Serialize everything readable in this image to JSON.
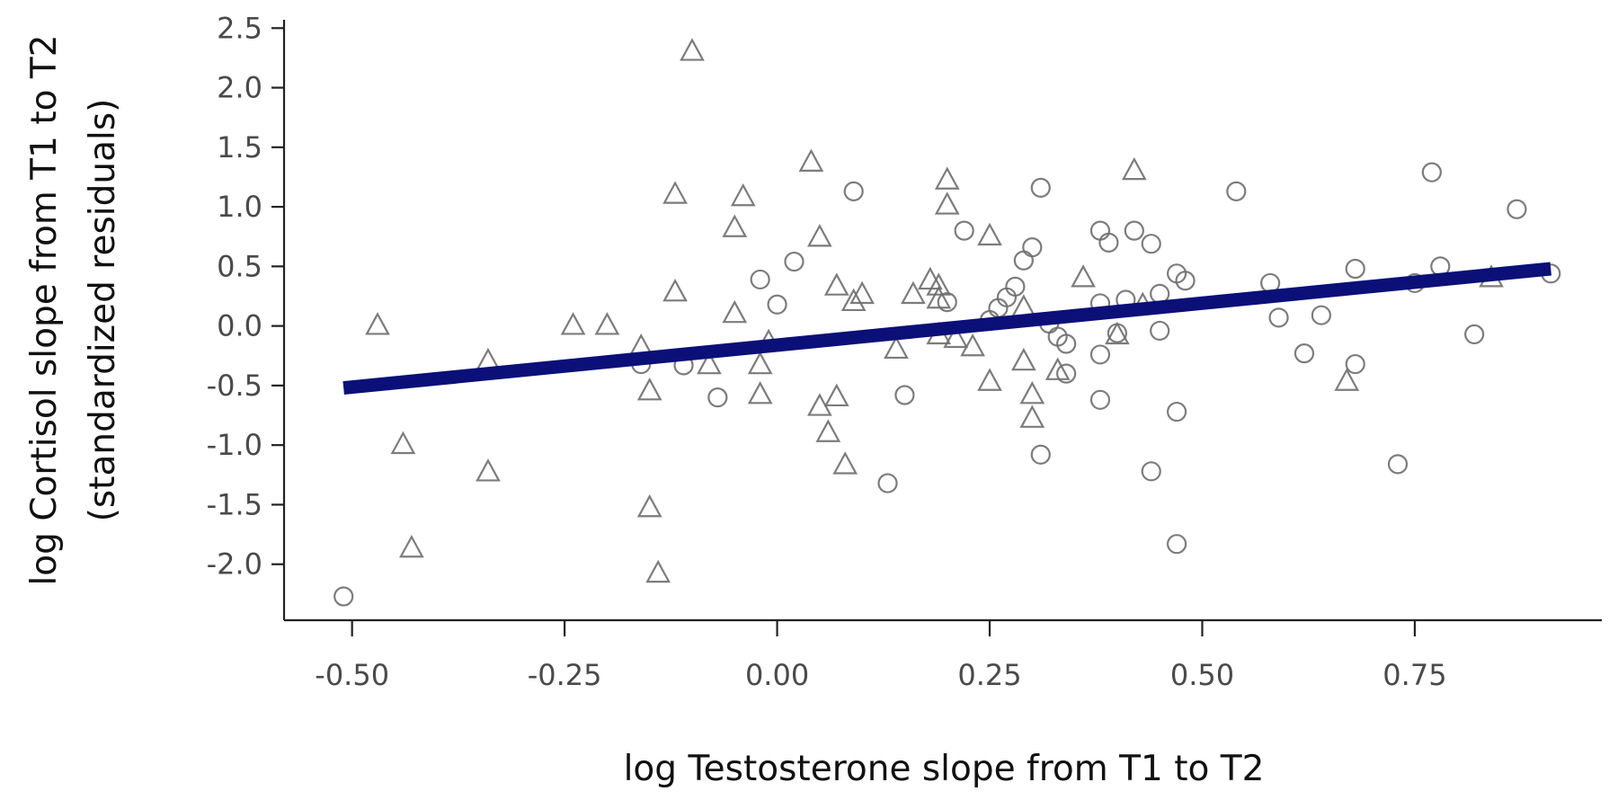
{
  "chart_data": {
    "type": "scatter",
    "xlabel": "log Testosterone slope from T1 to T2",
    "ylabel_lines": [
      "log Cortisol slope from T1 to T2",
      "(standardized residuals)"
    ],
    "xlim": [
      -0.58,
      0.97
    ],
    "ylim": [
      -2.47,
      2.57
    ],
    "x_ticks": [
      -0.5,
      -0.25,
      0.0,
      0.25,
      0.5,
      0.75
    ],
    "x_tick_labels": [
      "-0.50",
      "-0.25",
      "0.00",
      "0.25",
      "0.50",
      "0.75"
    ],
    "y_ticks": [
      2.5,
      2.0,
      1.5,
      1.0,
      0.5,
      0.0,
      -0.5,
      -1.0,
      -1.5,
      -2.0
    ],
    "y_tick_labels": [
      "2.5",
      "2.0",
      "1.5",
      "1.0",
      "0.5",
      "0.0",
      "-0.5",
      "-1.0",
      "-1.5",
      "-2.0"
    ],
    "grid": false,
    "series": [
      {
        "marker": "triangle",
        "points": [
          [
            -0.47,
            0.0
          ],
          [
            -0.34,
            -0.3
          ],
          [
            -0.44,
            -1.0
          ],
          [
            -0.34,
            -1.23
          ],
          [
            -0.43,
            -1.87
          ],
          [
            -0.24,
            0.0
          ],
          [
            -0.2,
            0.0
          ],
          [
            -0.16,
            -0.18
          ],
          [
            -0.15,
            -0.55
          ],
          [
            -0.15,
            -1.53
          ],
          [
            -0.14,
            -2.08
          ],
          [
            -0.12,
            0.28
          ],
          [
            -0.12,
            1.1
          ],
          [
            -0.1,
            2.3
          ],
          [
            -0.08,
            -0.33
          ],
          [
            -0.05,
            0.82
          ],
          [
            -0.05,
            0.1
          ],
          [
            -0.04,
            1.08
          ],
          [
            -0.02,
            -0.33
          ],
          [
            -0.02,
            -0.58
          ],
          [
            -0.01,
            -0.14
          ],
          [
            0.04,
            1.37
          ],
          [
            0.05,
            0.74
          ],
          [
            0.05,
            -0.68
          ],
          [
            0.06,
            -0.9
          ],
          [
            0.07,
            0.33
          ],
          [
            0.07,
            -0.6
          ],
          [
            0.08,
            -1.17
          ],
          [
            0.09,
            0.2
          ],
          [
            0.1,
            0.26
          ],
          [
            0.14,
            -0.2
          ],
          [
            0.16,
            0.26
          ],
          [
            0.18,
            0.38
          ],
          [
            0.19,
            0.33
          ],
          [
            0.19,
            0.22
          ],
          [
            0.19,
            -0.08
          ],
          [
            0.2,
            1.22
          ],
          [
            0.2,
            1.01
          ],
          [
            0.21,
            -0.11
          ],
          [
            0.23,
            -0.18
          ],
          [
            0.25,
            -0.47
          ],
          [
            0.25,
            0.75
          ],
          [
            0.29,
            0.15
          ],
          [
            0.29,
            -0.3
          ],
          [
            0.3,
            -0.78
          ],
          [
            0.3,
            -0.58
          ],
          [
            0.33,
            -0.38
          ],
          [
            0.36,
            0.4
          ],
          [
            0.4,
            -0.08
          ],
          [
            0.42,
            1.3
          ],
          [
            0.43,
            0.17
          ],
          [
            0.67,
            -0.47
          ],
          [
            0.84,
            0.4
          ]
        ]
      },
      {
        "marker": "circle",
        "points": [
          [
            -0.51,
            -2.27
          ],
          [
            -0.16,
            -0.32
          ],
          [
            -0.11,
            -0.33
          ],
          [
            -0.07,
            -0.6
          ],
          [
            -0.02,
            0.39
          ],
          [
            0.0,
            0.18
          ],
          [
            0.02,
            0.54
          ],
          [
            0.09,
            1.13
          ],
          [
            0.13,
            -1.32
          ],
          [
            0.15,
            -0.58
          ],
          [
            0.2,
            0.2
          ],
          [
            0.22,
            0.8
          ],
          [
            0.25,
            0.05
          ],
          [
            0.26,
            0.15
          ],
          [
            0.27,
            0.24
          ],
          [
            0.28,
            0.33
          ],
          [
            0.29,
            0.55
          ],
          [
            0.3,
            0.66
          ],
          [
            0.31,
            1.16
          ],
          [
            0.31,
            -1.08
          ],
          [
            0.32,
            0.02
          ],
          [
            0.33,
            -0.09
          ],
          [
            0.34,
            -0.15
          ],
          [
            0.34,
            -0.4
          ],
          [
            0.38,
            0.19
          ],
          [
            0.38,
            -0.24
          ],
          [
            0.38,
            -0.62
          ],
          [
            0.38,
            0.8
          ],
          [
            0.39,
            0.7
          ],
          [
            0.4,
            -0.06
          ],
          [
            0.41,
            0.22
          ],
          [
            0.42,
            0.8
          ],
          [
            0.44,
            0.69
          ],
          [
            0.44,
            -1.22
          ],
          [
            0.45,
            0.27
          ],
          [
            0.45,
            -0.04
          ],
          [
            0.47,
            -0.72
          ],
          [
            0.47,
            0.44
          ],
          [
            0.47,
            -1.83
          ],
          [
            0.48,
            0.38
          ],
          [
            0.54,
            1.13
          ],
          [
            0.58,
            0.36
          ],
          [
            0.59,
            0.07
          ],
          [
            0.62,
            -0.23
          ],
          [
            0.64,
            0.09
          ],
          [
            0.68,
            0.48
          ],
          [
            0.68,
            -0.32
          ],
          [
            0.73,
            -1.16
          ],
          [
            0.75,
            0.36
          ],
          [
            0.77,
            1.29
          ],
          [
            0.78,
            0.5
          ],
          [
            0.82,
            -0.07
          ],
          [
            0.87,
            0.98
          ],
          [
            0.91,
            0.44
          ]
        ]
      }
    ],
    "regression_line": {
      "x": [
        -0.51,
        0.91
      ],
      "y": [
        -0.52,
        0.48
      ],
      "color": "#0b0f78"
    },
    "marker_color": "#6e6e6e"
  }
}
